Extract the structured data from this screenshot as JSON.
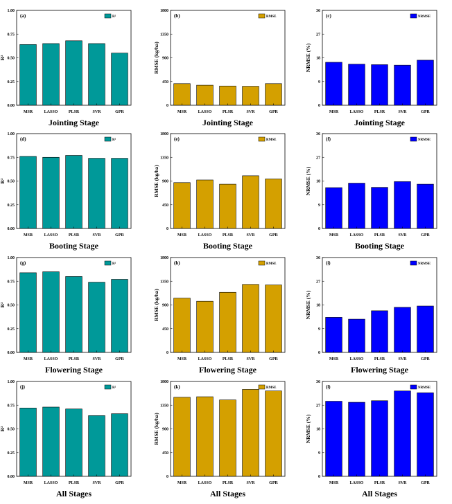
{
  "colors": {
    "r2": "#009999",
    "rmse": "#D4A000",
    "nrmse": "#0000FF",
    "axis": "#000000"
  },
  "chart_data": [
    {
      "id": "a",
      "tag": "(a)",
      "type": "bar",
      "ylabel": "R²",
      "legend": "R²",
      "stage": "Jointing Stage",
      "categories": [
        "MSR",
        "LASSO",
        "PLSR",
        "SVR",
        "GPR"
      ],
      "values": [
        0.64,
        0.65,
        0.68,
        0.65,
        0.55
      ],
      "ylim": [
        0,
        1
      ],
      "yticks": [
        "0.00",
        "0.25",
        "0.50",
        "0.75",
        "1.00"
      ],
      "legend_position": "top-right"
    },
    {
      "id": "b",
      "tag": "(b)",
      "type": "bar",
      "ylabel": "RMSE (kg/ha)",
      "legend": "RMSE",
      "stage": "Jointing Stage",
      "categories": [
        "MSR",
        "LASSO",
        "PLSR",
        "SVR",
        "GPR"
      ],
      "values": [
        410,
        380,
        365,
        360,
        410
      ],
      "ylim": [
        0,
        1800
      ],
      "yticks": [
        "0",
        "450",
        "900",
        "1350",
        "1800"
      ],
      "legend_position": "top-right"
    },
    {
      "id": "c",
      "tag": "(c)",
      "type": "bar",
      "ylabel": "NRMSE (%)",
      "legend": "NRMSE",
      "stage": "Jointing Stage",
      "categories": [
        "MSR",
        "LASSO",
        "PLSR",
        "SVR",
        "GPR"
      ],
      "values": [
        16.3,
        15.6,
        15.4,
        15.2,
        17.1
      ],
      "ylim": [
        0,
        36
      ],
      "yticks": [
        "0",
        "9",
        "18",
        "27",
        "36"
      ],
      "legend_position": "top-right"
    },
    {
      "id": "d",
      "tag": "(d)",
      "type": "bar",
      "ylabel": "R²",
      "legend": "R²",
      "stage": "Booting Stage",
      "categories": [
        "MSR",
        "LASSO",
        "PLSR",
        "SVR",
        "GPR"
      ],
      "values": [
        0.76,
        0.75,
        0.77,
        0.74,
        0.74
      ],
      "ylim": [
        0,
        1
      ],
      "yticks": [
        "0.00",
        "0.25",
        "0.50",
        "0.75",
        "1.00"
      ],
      "legend_position": "top-right"
    },
    {
      "id": "e",
      "tag": "(e)",
      "type": "bar",
      "ylabel": "RMSE (kg/ha)",
      "legend": "RMSE",
      "stage": "Booting Stage",
      "categories": [
        "MSR",
        "LASSO",
        "PLSR",
        "SVR",
        "GPR"
      ],
      "values": [
        870,
        920,
        840,
        1000,
        940
      ],
      "ylim": [
        0,
        1800
      ],
      "yticks": [
        "0",
        "450",
        "900",
        "1350",
        "1800"
      ],
      "legend_position": "top-right"
    },
    {
      "id": "f",
      "tag": "(f)",
      "type": "bar",
      "ylabel": "NRMSE (%)",
      "legend": "NRMSE",
      "stage": "Booting Stage",
      "categories": [
        "MSR",
        "LASSO",
        "PLSR",
        "SVR",
        "GPR"
      ],
      "values": [
        15.5,
        17.2,
        15.6,
        17.8,
        16.8
      ],
      "ylim": [
        0,
        36
      ],
      "yticks": [
        "0",
        "9",
        "18",
        "27",
        "36"
      ],
      "legend_position": "top-right"
    },
    {
      "id": "g",
      "tag": "(g)",
      "type": "bar",
      "ylabel": "R²",
      "legend": "R²",
      "stage": "Flowering Stage",
      "categories": [
        "MSR",
        "LASSO",
        "PLSR",
        "SVR",
        "GPR"
      ],
      "values": [
        0.84,
        0.85,
        0.8,
        0.74,
        0.77
      ],
      "ylim": [
        0,
        1
      ],
      "yticks": [
        "0.00",
        "0.25",
        "0.50",
        "0.75",
        "1.00"
      ],
      "legend_position": "top-right"
    },
    {
      "id": "h",
      "tag": "(h)",
      "type": "bar",
      "ylabel": "RMSE (kg/ha)",
      "legend": "RMSE",
      "stage": "Flowering Stage",
      "categories": [
        "MSR",
        "LASSO",
        "PLSR",
        "SVR",
        "GPR"
      ],
      "values": [
        1030,
        970,
        1140,
        1290,
        1280
      ],
      "ylim": [
        0,
        1800
      ],
      "yticks": [
        "0",
        "450",
        "900",
        "1350",
        "1800"
      ],
      "legend_position": "top-right"
    },
    {
      "id": "i",
      "tag": "(i)",
      "type": "bar",
      "ylabel": "NRMSE (%)",
      "legend": "NRMSE",
      "stage": "Flowering Stage",
      "categories": [
        "MSR",
        "LASSO",
        "PLSR",
        "SVR",
        "GPR"
      ],
      "values": [
        13.3,
        12.6,
        15.8,
        17.1,
        17.6
      ],
      "ylim": [
        0,
        36
      ],
      "yticks": [
        "0",
        "9",
        "18",
        "27",
        "36"
      ],
      "legend_position": "top-right"
    },
    {
      "id": "j",
      "tag": "(j)",
      "type": "bar",
      "ylabel": "R²",
      "legend": "R²",
      "stage": "All Stages",
      "categories": [
        "MSR",
        "LASSO",
        "PLSR",
        "SVR",
        "GPR"
      ],
      "values": [
        0.72,
        0.73,
        0.71,
        0.64,
        0.66
      ],
      "ylim": [
        0,
        1
      ],
      "yticks": [
        "0.00",
        "0.25",
        "0.50",
        "0.75",
        "1.00"
      ],
      "legend_position": "top-right"
    },
    {
      "id": "k",
      "tag": "(k)",
      "type": "bar",
      "ylabel": "RMSE (kg/ha)",
      "legend": "RMSE",
      "stage": "All Stages",
      "categories": [
        "MSR",
        "LASSO",
        "PLSR",
        "SVR",
        "GPR"
      ],
      "values": [
        1500,
        1510,
        1450,
        1650,
        1620
      ],
      "ylim": [
        0,
        1800
      ],
      "yticks": [
        "0",
        "450",
        "900",
        "1350",
        "1800"
      ],
      "legend_position": "top-right"
    },
    {
      "id": "l",
      "tag": "(l)",
      "type": "bar",
      "ylabel": "NRMSE (%)",
      "legend": "NRMSE",
      "stage": "All Stages",
      "categories": [
        "MSR",
        "LASSO",
        "PLSR",
        "SVR",
        "GPR"
      ],
      "values": [
        28.5,
        28.1,
        28.7,
        32.4,
        31.7
      ],
      "ylim": [
        0,
        36
      ],
      "yticks": [
        "0",
        "9",
        "18",
        "27",
        "36"
      ],
      "legend_position": "top-right"
    }
  ]
}
